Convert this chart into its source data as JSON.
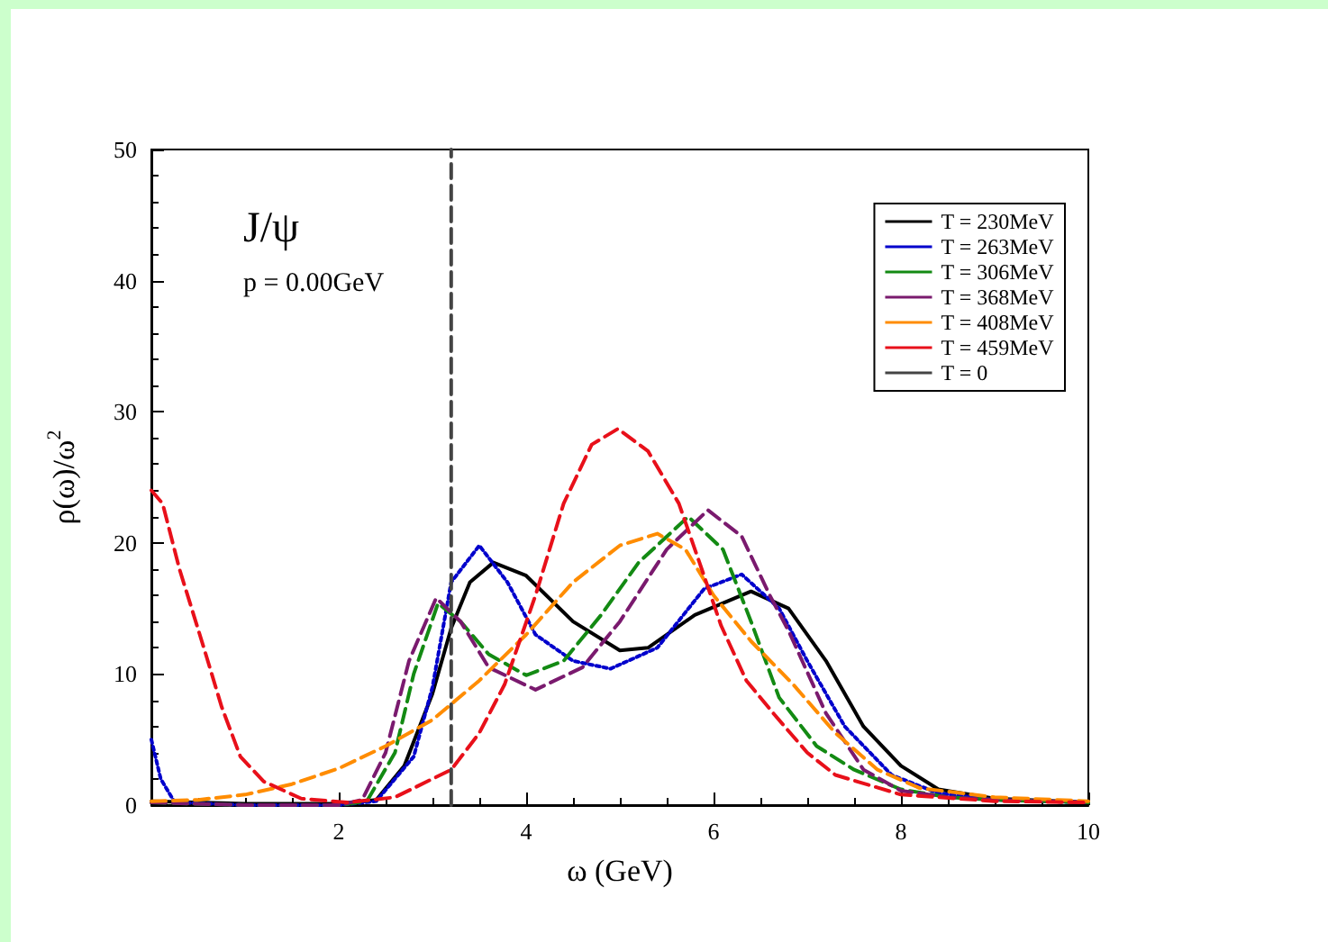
{
  "chart_data": {
    "type": "line",
    "xlabel": "ω (GeV)",
    "ylabel": "ρ(ω)/ω$^{2}$",
    "annotations": [
      "J/ψ",
      "p = 0.00GeV"
    ],
    "xlim": [
      0,
      10
    ],
    "ylim": [
      0,
      50
    ],
    "xticks": [
      {
        "value": 0,
        "label": null
      },
      2,
      4,
      6,
      8,
      10
    ],
    "yticks": [
      0,
      10,
      20,
      30,
      40,
      50
    ],
    "grid": false,
    "legend": "top right",
    "marker": "none",
    "series": [
      {
        "name": "T = 230MeV",
        "color": "#000000",
        "line_style": "solid",
        "x": [
          0,
          1,
          2,
          2.4,
          2.7,
          3,
          3.2,
          3.4,
          3.65,
          4,
          4.5,
          5,
          5.3,
          5.8,
          6.4,
          6.8,
          7.2,
          7.6,
          8,
          8.4,
          9,
          10
        ],
        "values": [
          0.3,
          0.1,
          0.1,
          0.4,
          3,
          8.5,
          13.5,
          17,
          18.5,
          17.5,
          14,
          11.8,
          12,
          14.5,
          16.3,
          15,
          11,
          6,
          3,
          1.2,
          0.5,
          0.2
        ]
      },
      {
        "name": "T = 263MeV",
        "color": "#0000cc",
        "line_style": "dotted",
        "x": [
          0,
          0.1,
          0.25,
          1,
          2,
          2.4,
          2.8,
          3,
          3.2,
          3.5,
          3.8,
          4.1,
          4.5,
          4.9,
          5.4,
          5.9,
          6.3,
          6.7,
          7,
          7.4,
          7.9,
          8.4,
          9,
          10
        ],
        "values": [
          5,
          2,
          0.2,
          0,
          0,
          0.3,
          3.7,
          9,
          17,
          19.8,
          17,
          13,
          11,
          10.4,
          12,
          16.5,
          17.6,
          15,
          11,
          6,
          2.3,
          0.9,
          0.4,
          0.2
        ]
      },
      {
        "name": "T = 306MeV",
        "color": "#138a13",
        "line_style": "dashed",
        "x": [
          0,
          1,
          2,
          2.3,
          2.6,
          2.8,
          3.06,
          3.3,
          3.6,
          4,
          4.4,
          4.8,
          5.2,
          5.73,
          6.1,
          6.4,
          6.7,
          7.1,
          7.5,
          8,
          8.5,
          9,
          10
        ],
        "values": [
          0.2,
          0,
          0,
          0.3,
          4,
          10,
          15.4,
          14,
          11.5,
          9.9,
          11,
          14.5,
          18.5,
          22,
          19.5,
          14,
          8.2,
          4.5,
          2.7,
          1.2,
          0.6,
          0.4,
          0.2
        ]
      },
      {
        "name": "T = 368MeV",
        "color": "#7a1a6e",
        "line_style": "dashed",
        "x": [
          0,
          1,
          2,
          2.25,
          2.5,
          2.75,
          3.04,
          3.3,
          3.6,
          4.1,
          4.6,
          5,
          5.5,
          5.94,
          6.3,
          6.6,
          6.8,
          7.2,
          7.6,
          8,
          8.5,
          9,
          10
        ],
        "values": [
          0.2,
          0,
          0,
          0.4,
          4,
          11,
          15.8,
          14,
          10.5,
          8.8,
          10.5,
          14,
          19.5,
          22.5,
          20.5,
          16,
          13.3,
          7,
          2.7,
          1.1,
          0.6,
          0.4,
          0.2
        ]
      },
      {
        "name": "T = 408MeV",
        "color": "#ff8c00",
        "line_style": "dashed",
        "x": [
          0,
          0.5,
          1,
          1.5,
          2,
          2.5,
          3,
          3.5,
          4,
          4.5,
          5,
          5.4,
          5.7,
          6,
          6.4,
          6.85,
          7.3,
          7.75,
          8.2,
          9,
          10
        ],
        "values": [
          0.3,
          0.4,
          0.8,
          1.6,
          2.8,
          4.5,
          6.5,
          9.5,
          13,
          17,
          19.8,
          20.7,
          19.5,
          16,
          12.5,
          9.2,
          5.5,
          2.7,
          1.3,
          0.6,
          0.3
        ]
      },
      {
        "name": "T = 459MeV",
        "color": "#e8101a",
        "line_style": "dashed",
        "x": [
          0,
          0.12,
          0.3,
          0.56,
          0.75,
          0.95,
          1.2,
          1.6,
          2.1,
          2.6,
          3.2,
          3.5,
          3.77,
          4.1,
          4.4,
          4.7,
          4.98,
          5.3,
          5.63,
          5.85,
          6.08,
          6.35,
          6.65,
          7,
          7.3,
          8,
          9,
          10
        ],
        "values": [
          24,
          23,
          18,
          12,
          7.5,
          3.7,
          1.8,
          0.5,
          0.2,
          0.6,
          2.7,
          5.5,
          9.2,
          16,
          23,
          27.5,
          28.7,
          27,
          23,
          18.5,
          13.7,
          9.5,
          6.9,
          4,
          2.3,
          0.8,
          0.3,
          0.2
        ]
      },
      {
        "name": "T = 0",
        "color": "#444444",
        "line_style": "dashed",
        "x": [
          3.2,
          3.2
        ],
        "values": [
          0,
          50
        ]
      }
    ]
  }
}
